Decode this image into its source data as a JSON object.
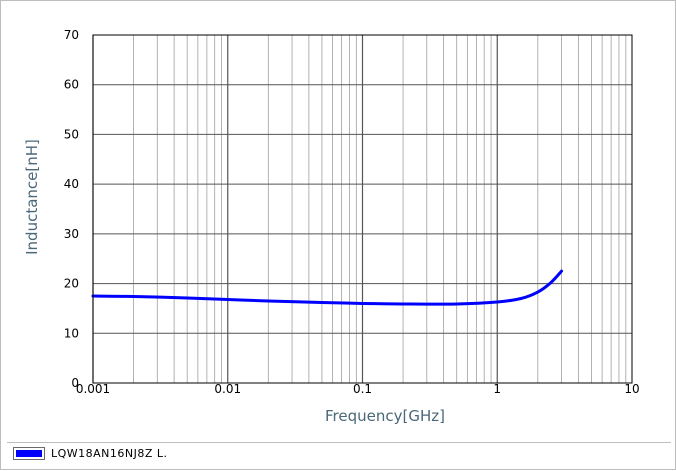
{
  "chart_data": {
    "type": "line",
    "xlabel": "Frequency[GHz]",
    "ylabel": "Inductance[nH]",
    "xscale": "log",
    "xlim": [
      0.001,
      10
    ],
    "ylim": [
      0,
      70
    ],
    "x_ticks": [
      0.001,
      0.01,
      0.1,
      1,
      10
    ],
    "x_tick_labels": [
      "0.001",
      "0.01",
      "0.1",
      "1",
      "10"
    ],
    "y_ticks": [
      0,
      10,
      20,
      30,
      40,
      50,
      60,
      70
    ],
    "y_tick_labels": [
      "0",
      "10",
      "20",
      "30",
      "40",
      "50",
      "60",
      "70"
    ],
    "grid": true,
    "legend_position": "bottom",
    "series": [
      {
        "name": "LQW18AN16NJ8Z L.",
        "color": "#0000ff",
        "x": [
          0.001,
          0.002,
          0.005,
          0.01,
          0.02,
          0.05,
          0.1,
          0.2,
          0.5,
          1,
          1.5,
          2,
          2.5,
          3
        ],
        "y": [
          17.5,
          17.4,
          17.1,
          16.8,
          16.5,
          16.2,
          16.0,
          15.9,
          15.9,
          16.3,
          17.0,
          18.3,
          20.2,
          22.5
        ]
      }
    ]
  },
  "colors": {
    "series": "#0000ff",
    "grid": "#a0a0a0",
    "axis_title": "#4a6878"
  }
}
